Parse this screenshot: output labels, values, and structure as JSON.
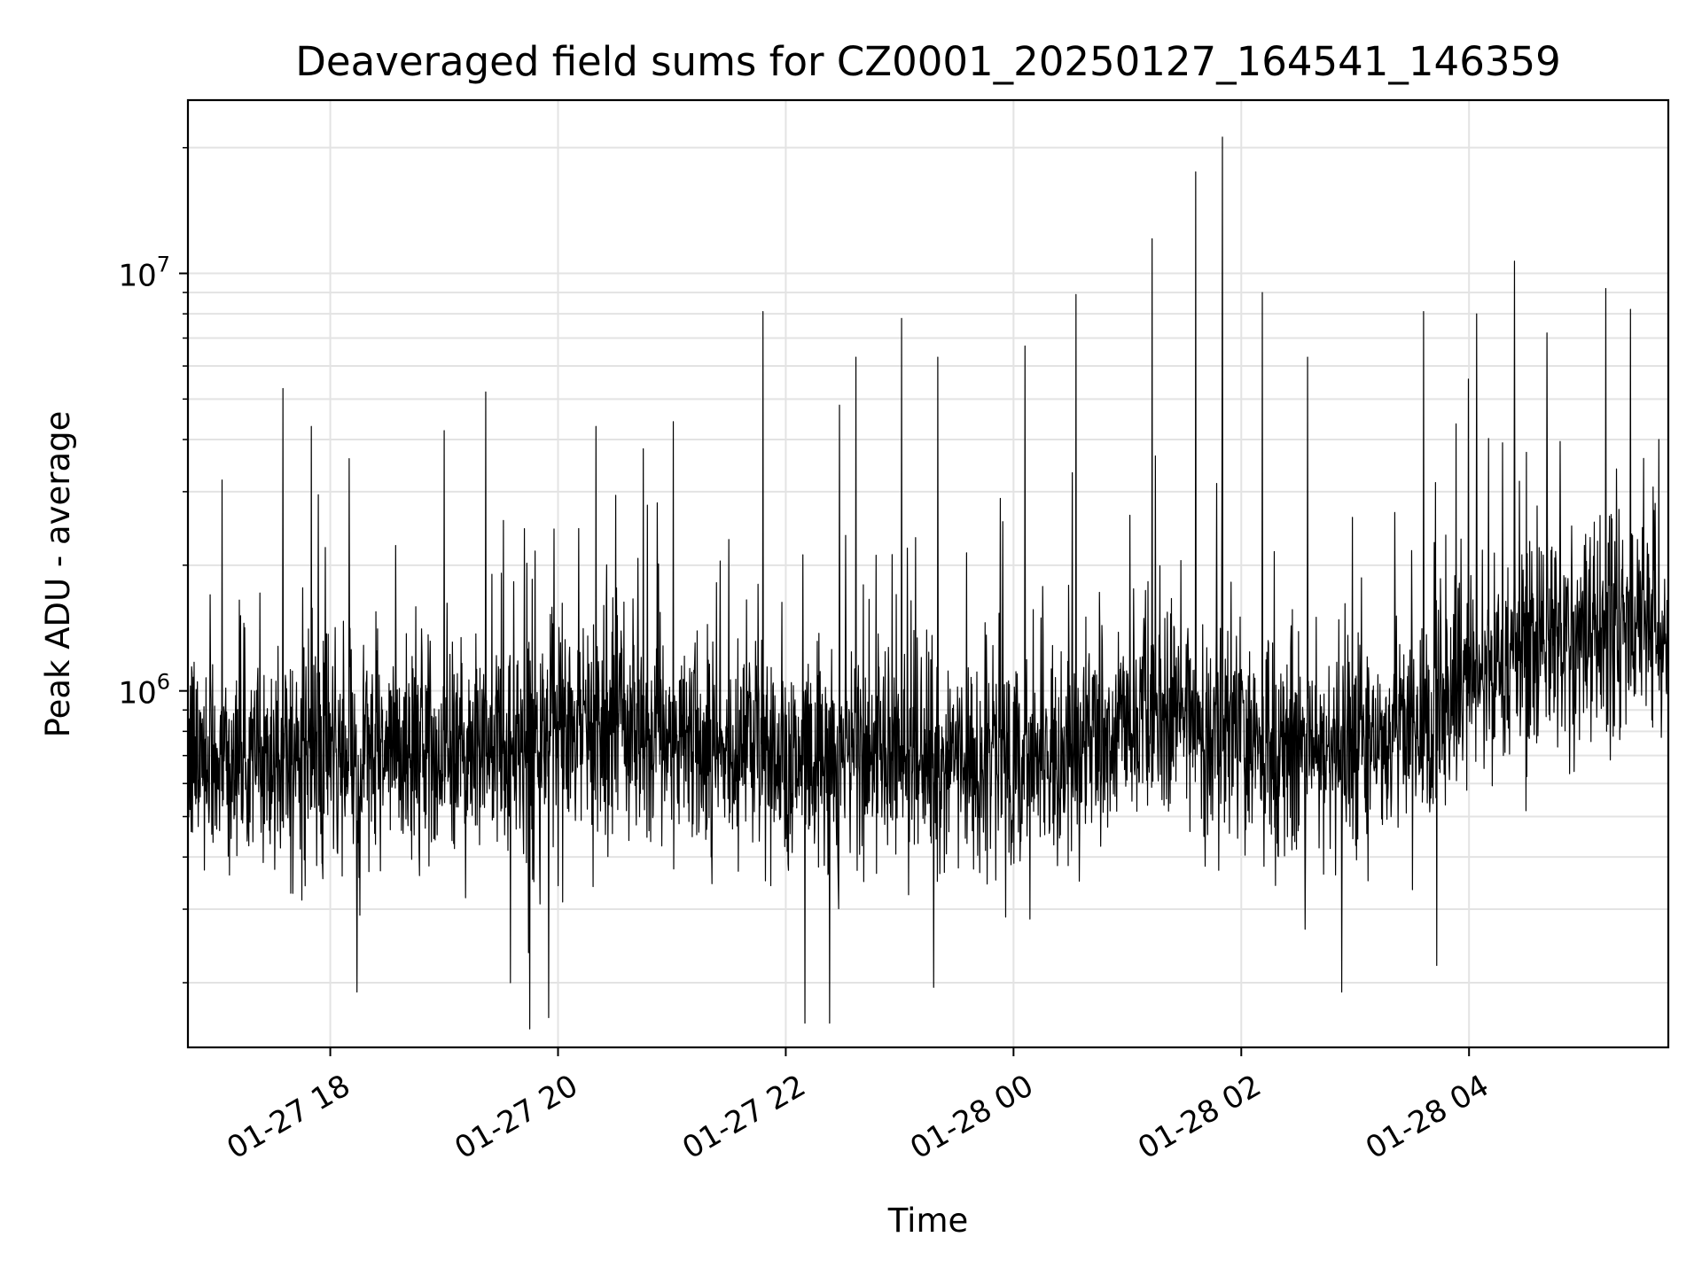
{
  "chart_data": {
    "type": "line",
    "title": "Deaveraged field sums for CZ0001_20250127_164541_146359",
    "xlabel": "Time",
    "ylabel": "Peak ADU - average",
    "x_axis": {
      "type": "datetime",
      "range": [
        "2025-01-27 16:45",
        "2025-01-28 05:45"
      ],
      "tick_labels": [
        "01-27 18",
        "01-27 20",
        "01-27 22",
        "01-28 00",
        "01-28 02",
        "01-28 04"
      ],
      "tick_times": [
        "2025-01-27 18:00",
        "2025-01-27 20:00",
        "2025-01-27 22:00",
        "2025-01-28 00:00",
        "2025-01-28 02:00",
        "2025-01-28 04:00"
      ]
    },
    "y_axis": {
      "scale": "log",
      "ylim": [
        140000,
        26000000
      ],
      "tick_labels": [
        {
          "base": "10",
          "exp": "6",
          "value": 1000000
        },
        {
          "base": "10",
          "exp": "7",
          "value": 10000000
        }
      ]
    },
    "grid": true,
    "legend": "none",
    "line_color": "#000000",
    "series": [
      {
        "baseline": [
          [
            "2025-01-27 16:45",
            700000
          ],
          [
            "2025-01-27 18:00",
            680000
          ],
          [
            "2025-01-27 19:00",
            720000
          ],
          [
            "2025-01-27 20:00",
            760000
          ],
          [
            "2025-01-27 20:30",
            850000
          ],
          [
            "2025-01-27 21:30",
            720000
          ],
          [
            "2025-01-27 22:30",
            690000
          ],
          [
            "2025-01-27 23:30",
            680000
          ],
          [
            "2025-01-28 00:30",
            720000
          ],
          [
            "2025-01-28 01:30",
            880000
          ],
          [
            "2025-01-28 02:30",
            680000
          ],
          [
            "2025-01-28 03:30",
            820000
          ],
          [
            "2025-01-28 04:30",
            1300000
          ],
          [
            "2025-01-28 05:45",
            1500000
          ]
        ],
        "peaks": [
          [
            "2025-01-27 17:03",
            3200000
          ],
          [
            "2025-01-27 17:35",
            5300000
          ],
          [
            "2025-01-27 17:50",
            4300000
          ],
          [
            "2025-01-27 18:10",
            3600000
          ],
          [
            "2025-01-27 19:00",
            4200000
          ],
          [
            "2025-01-27 19:22",
            5200000
          ],
          [
            "2025-01-27 20:20",
            4300000
          ],
          [
            "2025-01-27 20:45",
            3800000
          ],
          [
            "2025-01-27 21:48",
            8100000
          ],
          [
            "2025-01-27 22:37",
            6300000
          ],
          [
            "2025-01-27 23:01",
            7800000
          ],
          [
            "2025-01-27 23:20",
            6300000
          ],
          [
            "2025-01-28 00:06",
            6700000
          ],
          [
            "2025-01-28 00:33",
            8900000
          ],
          [
            "2025-01-28 01:13",
            12100000
          ],
          [
            "2025-01-28 01:36",
            17500000
          ],
          [
            "2025-01-28 01:50",
            21200000
          ],
          [
            "2025-01-28 02:11",
            9000000
          ],
          [
            "2025-01-28 02:35",
            6300000
          ],
          [
            "2025-01-28 03:36",
            8100000
          ],
          [
            "2025-01-28 04:04",
            8000000
          ],
          [
            "2025-01-28 04:24",
            10700000
          ],
          [
            "2025-01-28 04:41",
            7200000
          ],
          [
            "2025-01-28 05:12",
            9200000
          ],
          [
            "2025-01-28 05:25",
            8200000
          ],
          [
            "2025-01-28 05:40",
            4000000
          ]
        ],
        "dips": [
          [
            "2025-01-27 18:14",
            190000
          ],
          [
            "2025-01-27 19:35",
            200000
          ],
          [
            "2025-01-27 19:45",
            155000
          ],
          [
            "2025-01-27 19:55",
            165000
          ],
          [
            "2025-01-27 22:10",
            160000
          ],
          [
            "2025-01-27 22:23",
            160000
          ],
          [
            "2025-01-27 23:18",
            195000
          ],
          [
            "2025-01-28 02:53",
            190000
          ],
          [
            "2025-01-28 03:43",
            220000
          ]
        ]
      }
    ]
  }
}
